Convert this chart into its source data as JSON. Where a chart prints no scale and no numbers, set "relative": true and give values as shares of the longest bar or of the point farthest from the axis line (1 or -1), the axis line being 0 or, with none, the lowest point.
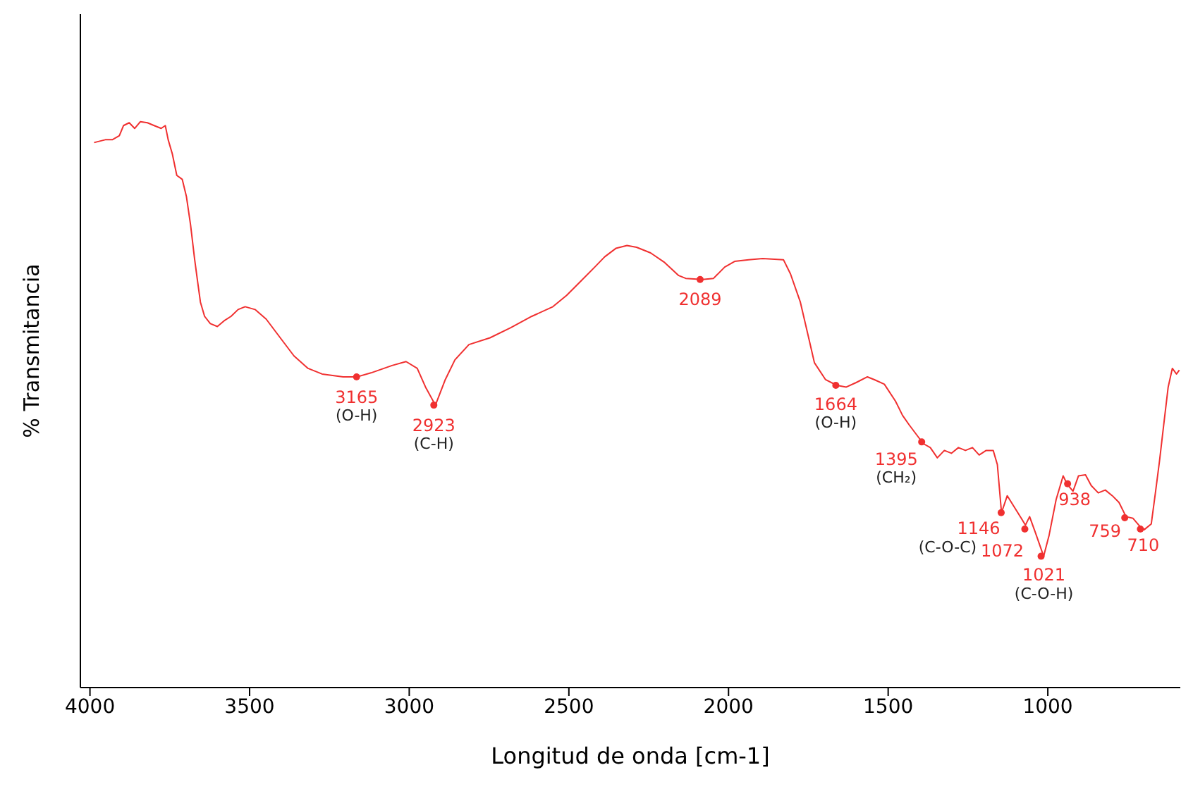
{
  "chart_data": {
    "type": "line",
    "relative": true,
    "xlabel": "Longitud de onda [cm-1]",
    "ylabel": "% Transmitancia",
    "xlim": [
      4030,
      585
    ],
    "xticks": [
      4000,
      3500,
      3000,
      2500,
      2000,
      1500,
      1000
    ],
    "grid": false,
    "legend": false,
    "marker": "none",
    "line_style": "solid",
    "series": [
      {
        "color": "#f03030",
        "x": [
          3987,
          3952,
          3930,
          3908,
          3895,
          3877,
          3860,
          3842,
          3820,
          3799,
          3777,
          3764,
          3755,
          3742,
          3728,
          3711,
          3698,
          3685,
          3672,
          3663,
          3654,
          3641,
          3623,
          3601,
          3580,
          3558,
          3536,
          3514,
          3483,
          3448,
          3404,
          3361,
          3317,
          3273,
          3207,
          3164,
          3120,
          3054,
          3010,
          2975,
          2949,
          2918,
          2888,
          2857,
          2813,
          2747,
          2682,
          2616,
          2550,
          2507,
          2463,
          2419,
          2388,
          2353,
          2318,
          2288,
          2244,
          2200,
          2156,
          2134,
          2082,
          2047,
          2012,
          1981,
          1937,
          1893,
          1828,
          1806,
          1775,
          1749,
          1731,
          1696,
          1661,
          1631,
          1600,
          1565,
          1543,
          1512,
          1477,
          1455,
          1434,
          1390,
          1368,
          1346,
          1324,
          1302,
          1280,
          1258,
          1236,
          1215,
          1193,
          1171,
          1158,
          1145,
          1127,
          1105,
          1083,
          1070,
          1057,
          1039,
          1013,
          996,
          974,
          952,
          939,
          921,
          904,
          882,
          864,
          842,
          820,
          798,
          777,
          755,
          733,
          715,
          698,
          676,
          663,
          650,
          637,
          623,
          610,
          597,
          588
        ],
        "values": [
          0.963,
          0.968,
          0.968,
          0.975,
          0.993,
          0.998,
          0.988,
          1.0,
          0.998,
          0.993,
          0.988,
          0.993,
          0.968,
          0.943,
          0.905,
          0.898,
          0.868,
          0.818,
          0.756,
          0.718,
          0.681,
          0.656,
          0.643,
          0.638,
          0.648,
          0.656,
          0.668,
          0.673,
          0.668,
          0.651,
          0.618,
          0.586,
          0.564,
          0.554,
          0.549,
          0.549,
          0.556,
          0.569,
          0.576,
          0.564,
          0.531,
          0.499,
          0.543,
          0.579,
          0.606,
          0.618,
          0.636,
          0.656,
          0.673,
          0.693,
          0.718,
          0.743,
          0.761,
          0.776,
          0.781,
          0.778,
          0.768,
          0.751,
          0.728,
          0.723,
          0.721,
          0.723,
          0.743,
          0.753,
          0.756,
          0.758,
          0.756,
          0.731,
          0.681,
          0.618,
          0.574,
          0.544,
          0.534,
          0.531,
          0.539,
          0.549,
          0.544,
          0.536,
          0.506,
          0.481,
          0.464,
          0.431,
          0.424,
          0.406,
          0.419,
          0.414,
          0.424,
          0.419,
          0.424,
          0.411,
          0.419,
          0.419,
          0.394,
          0.309,
          0.339,
          0.319,
          0.299,
          0.287,
          0.302,
          0.274,
          0.232,
          0.269,
          0.332,
          0.374,
          0.359,
          0.347,
          0.374,
          0.376,
          0.357,
          0.344,
          0.349,
          0.339,
          0.327,
          0.302,
          0.299,
          0.287,
          0.279,
          0.289,
          0.344,
          0.401,
          0.464,
          0.531,
          0.564,
          0.554,
          0.561
        ]
      }
    ],
    "annotations": [
      {
        "text": "3165",
        "x": 3165,
        "y": 0.549
      },
      {
        "text": "(O-H)",
        "x": 3165,
        "y": 0.549
      },
      {
        "text": "2923",
        "x": 2923,
        "y": 0.499
      },
      {
        "text": "(C-H)",
        "x": 2923,
        "y": 0.499
      },
      {
        "text": "2089",
        "x": 2089,
        "y": 0.721
      },
      {
        "text": "1664",
        "x": 1664,
        "y": 0.534
      },
      {
        "text": "(O-H)",
        "x": 1664,
        "y": 0.534
      },
      {
        "text": "1395",
        "x": 1395,
        "y": 0.434
      },
      {
        "text": "(CH₂)",
        "x": 1395,
        "y": 0.434
      },
      {
        "text": "1146",
        "x": 1146,
        "y": 0.309
      },
      {
        "text": "(C-O-C)",
        "x": 1146,
        "y": 0.309
      },
      {
        "text": "1072",
        "x": 1072,
        "y": 0.28
      },
      {
        "text": "1021",
        "x": 1021,
        "y": 0.232
      },
      {
        "text": "(C-O-H)",
        "x": 1021,
        "y": 0.232
      },
      {
        "text": "938",
        "x": 938,
        "y": 0.36
      },
      {
        "text": "759",
        "x": 759,
        "y": 0.3
      },
      {
        "text": "710",
        "x": 710,
        "y": 0.28
      }
    ]
  }
}
